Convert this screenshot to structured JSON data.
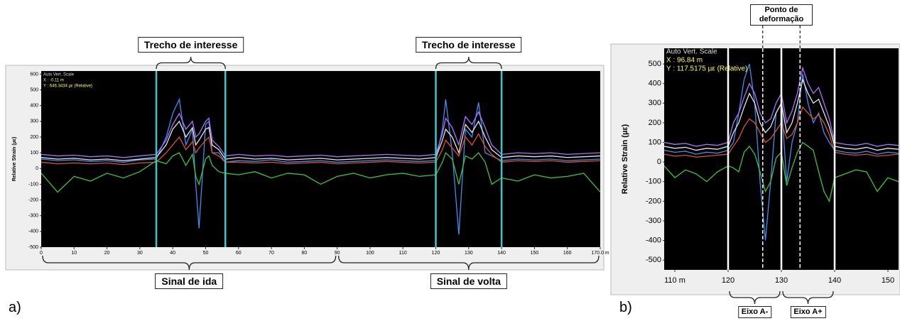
{
  "chart_data": [
    {
      "type": "line",
      "label": "a)",
      "ylabel": "Relative Strain (µε)",
      "info": [
        "Auto Vert. Scale",
        "X : -0.11 m",
        "Y : 646.3434 µε (Relative)"
      ],
      "xlim": [
        0,
        170
      ],
      "ylim": [
        -500,
        620
      ],
      "xticks": [
        0,
        10,
        20,
        30,
        40,
        50,
        60,
        70,
        80,
        90,
        100,
        110,
        120,
        130,
        140,
        150,
        160,
        {
          "value": 170,
          "label": "170.0 m"
        }
      ],
      "yticks": [
        -500,
        -400,
        -300,
        -200,
        -100,
        0,
        100,
        200,
        300,
        400,
        500,
        600
      ],
      "vlines": [
        35,
        56,
        120,
        140
      ],
      "vline_color": "#3cc8c8",
      "dashed_vlines": [],
      "annotations": [
        {
          "text": "Trecho de interesse",
          "x": [
            35,
            56
          ],
          "side": "top"
        },
        {
          "text": "Trecho de interesse",
          "x": [
            120,
            140
          ],
          "side": "top"
        },
        {
          "text": "Sinal de ida",
          "x": [
            0,
            90
          ],
          "side": "bottom"
        },
        {
          "text": "Sinal de volta",
          "x": [
            90,
            170
          ],
          "side": "bottom"
        }
      ],
      "x": [
        0,
        5,
        10,
        15,
        20,
        25,
        30,
        35,
        38,
        40,
        42,
        44,
        46,
        47,
        48,
        50,
        51,
        52,
        54,
        56,
        60,
        65,
        70,
        75,
        80,
        85,
        90,
        95,
        100,
        105,
        110,
        115,
        120,
        122,
        123,
        125,
        127,
        129,
        131,
        133,
        135,
        137,
        140,
        145,
        150,
        155,
        160,
        165,
        170
      ],
      "series": [
        {
          "color": "#3f8ef0",
          "values": [
            60,
            50,
            55,
            45,
            50,
            40,
            55,
            60,
            200,
            350,
            440,
            150,
            250,
            -100,
            -380,
            280,
            300,
            100,
            100,
            40,
            50,
            45,
            55,
            40,
            45,
            50,
            40,
            45,
            50,
            55,
            50,
            45,
            50,
            250,
            440,
            100,
            -420,
            250,
            200,
            420,
            100,
            80,
            50,
            60,
            55,
            60,
            50,
            55,
            60
          ]
        },
        {
          "color": "#e6e6e6",
          "values": [
            70,
            60,
            65,
            55,
            60,
            50,
            60,
            70,
            150,
            250,
            300,
            200,
            260,
            150,
            180,
            250,
            260,
            150,
            120,
            60,
            70,
            60,
            65,
            55,
            60,
            65,
            55,
            60,
            65,
            70,
            65,
            60,
            70,
            180,
            250,
            200,
            100,
            280,
            230,
            300,
            200,
            120,
            70,
            80,
            75,
            80,
            70,
            75,
            80
          ]
        },
        {
          "color": "#e0502c",
          "values": [
            40,
            30,
            35,
            30,
            35,
            25,
            35,
            40,
            100,
            150,
            200,
            120,
            170,
            100,
            130,
            180,
            200,
            100,
            80,
            40,
            40,
            35,
            40,
            30,
            35,
            40,
            30,
            35,
            40,
            45,
            40,
            35,
            40,
            120,
            180,
            130,
            80,
            200,
            150,
            220,
            140,
            90,
            40,
            50,
            45,
            50,
            40,
            45,
            50
          ]
        },
        {
          "color": "#3cc43c",
          "values": [
            -30,
            -150,
            -50,
            -80,
            -30,
            -60,
            -20,
            50,
            30,
            80,
            100,
            20,
            90,
            -50,
            -100,
            60,
            80,
            20,
            -20,
            -30,
            -40,
            -20,
            -60,
            -30,
            -40,
            -100,
            -50,
            -30,
            -60,
            -40,
            -30,
            -50,
            -40,
            40,
            100,
            60,
            -100,
            80,
            60,
            100,
            40,
            -100,
            -60,
            -80,
            -40,
            -60,
            -50,
            -30,
            -150
          ]
        },
        {
          "color": "#b070ff",
          "values": [
            90,
            80,
            85,
            75,
            80,
            70,
            80,
            90,
            180,
            280,
            350,
            250,
            300,
            200,
            220,
            300,
            320,
            180,
            140,
            80,
            90,
            80,
            85,
            75,
            80,
            85,
            75,
            80,
            85,
            90,
            85,
            80,
            90,
            220,
            320,
            260,
            150,
            330,
            280,
            360,
            260,
            150,
            90,
            100,
            95,
            100,
            90,
            95,
            100
          ]
        }
      ]
    },
    {
      "type": "line",
      "label": "b)",
      "ylabel": "Relative Strain (µε)",
      "info": [
        "Auto Vert. Scale",
        "X : 96.84 m",
        "Y : 117.5175 µε (Relative)"
      ],
      "xlim": [
        108,
        152
      ],
      "ylim": [
        -550,
        580
      ],
      "xticks": [
        {
          "value": 110,
          "label": "110 m"
        },
        120,
        130,
        140,
        150
      ],
      "yticks": [
        -500,
        -400,
        -300,
        -200,
        -100,
        0,
        100,
        200,
        300,
        400,
        500
      ],
      "vlines": [
        120,
        130,
        140
      ],
      "vline_color": "#ffffff",
      "dashed_vlines": [
        126.5,
        133.5
      ],
      "annotations": [
        {
          "text": "Ponto de deformação",
          "x": [
            126.5,
            133.5
          ],
          "side": "top"
        },
        {
          "text": "Eixo A-",
          "x": [
            120,
            130
          ],
          "side": "bottom"
        },
        {
          "text": "Eixo A+",
          "x": [
            130,
            140
          ],
          "side": "bottom"
        }
      ],
      "x": [
        108,
        110,
        112,
        114,
        116,
        118,
        120,
        121,
        122,
        123,
        124,
        125,
        126,
        127,
        128,
        129,
        130,
        131,
        132,
        133,
        134,
        135,
        136,
        137,
        138,
        139,
        140,
        142,
        144,
        146,
        148,
        150,
        152
      ],
      "series": [
        {
          "color": "#3f8ef0",
          "values": [
            60,
            50,
            55,
            40,
            50,
            45,
            60,
            100,
            250,
            420,
            500,
            300,
            -100,
            -400,
            -100,
            250,
            300,
            -100,
            100,
            200,
            450,
            300,
            200,
            250,
            150,
            100,
            60,
            50,
            45,
            55,
            40,
            50,
            45
          ]
        },
        {
          "color": "#e6e6e6",
          "values": [
            80,
            70,
            75,
            60,
            70,
            65,
            80,
            150,
            200,
            280,
            350,
            300,
            200,
            150,
            180,
            250,
            300,
            150,
            200,
            300,
            420,
            350,
            300,
            320,
            250,
            180,
            80,
            70,
            65,
            75,
            60,
            70,
            65
          ]
        },
        {
          "color": "#e0502c",
          "values": [
            40,
            30,
            35,
            25,
            30,
            35,
            40,
            80,
            120,
            180,
            220,
            200,
            150,
            100,
            120,
            160,
            200,
            120,
            140,
            200,
            280,
            250,
            220,
            240,
            200,
            140,
            50,
            40,
            35,
            40,
            30,
            35,
            40
          ]
        },
        {
          "color": "#3cc43c",
          "values": [
            -20,
            -80,
            -40,
            -60,
            -100,
            -50,
            -20,
            -30,
            -50,
            50,
            80,
            40,
            -50,
            -150,
            -100,
            20,
            50,
            -120,
            -30,
            50,
            100,
            80,
            60,
            -50,
            -150,
            -200,
            -80,
            -60,
            -40,
            -50,
            -150,
            -80,
            -100
          ]
        },
        {
          "color": "#b070ff",
          "values": [
            100,
            90,
            95,
            80,
            90,
            85,
            100,
            200,
            250,
            330,
            400,
            350,
            250,
            200,
            220,
            300,
            350,
            200,
            260,
            350,
            480,
            400,
            350,
            380,
            300,
            220,
            100,
            90,
            85,
            95,
            80,
            90,
            85
          ]
        }
      ]
    }
  ]
}
